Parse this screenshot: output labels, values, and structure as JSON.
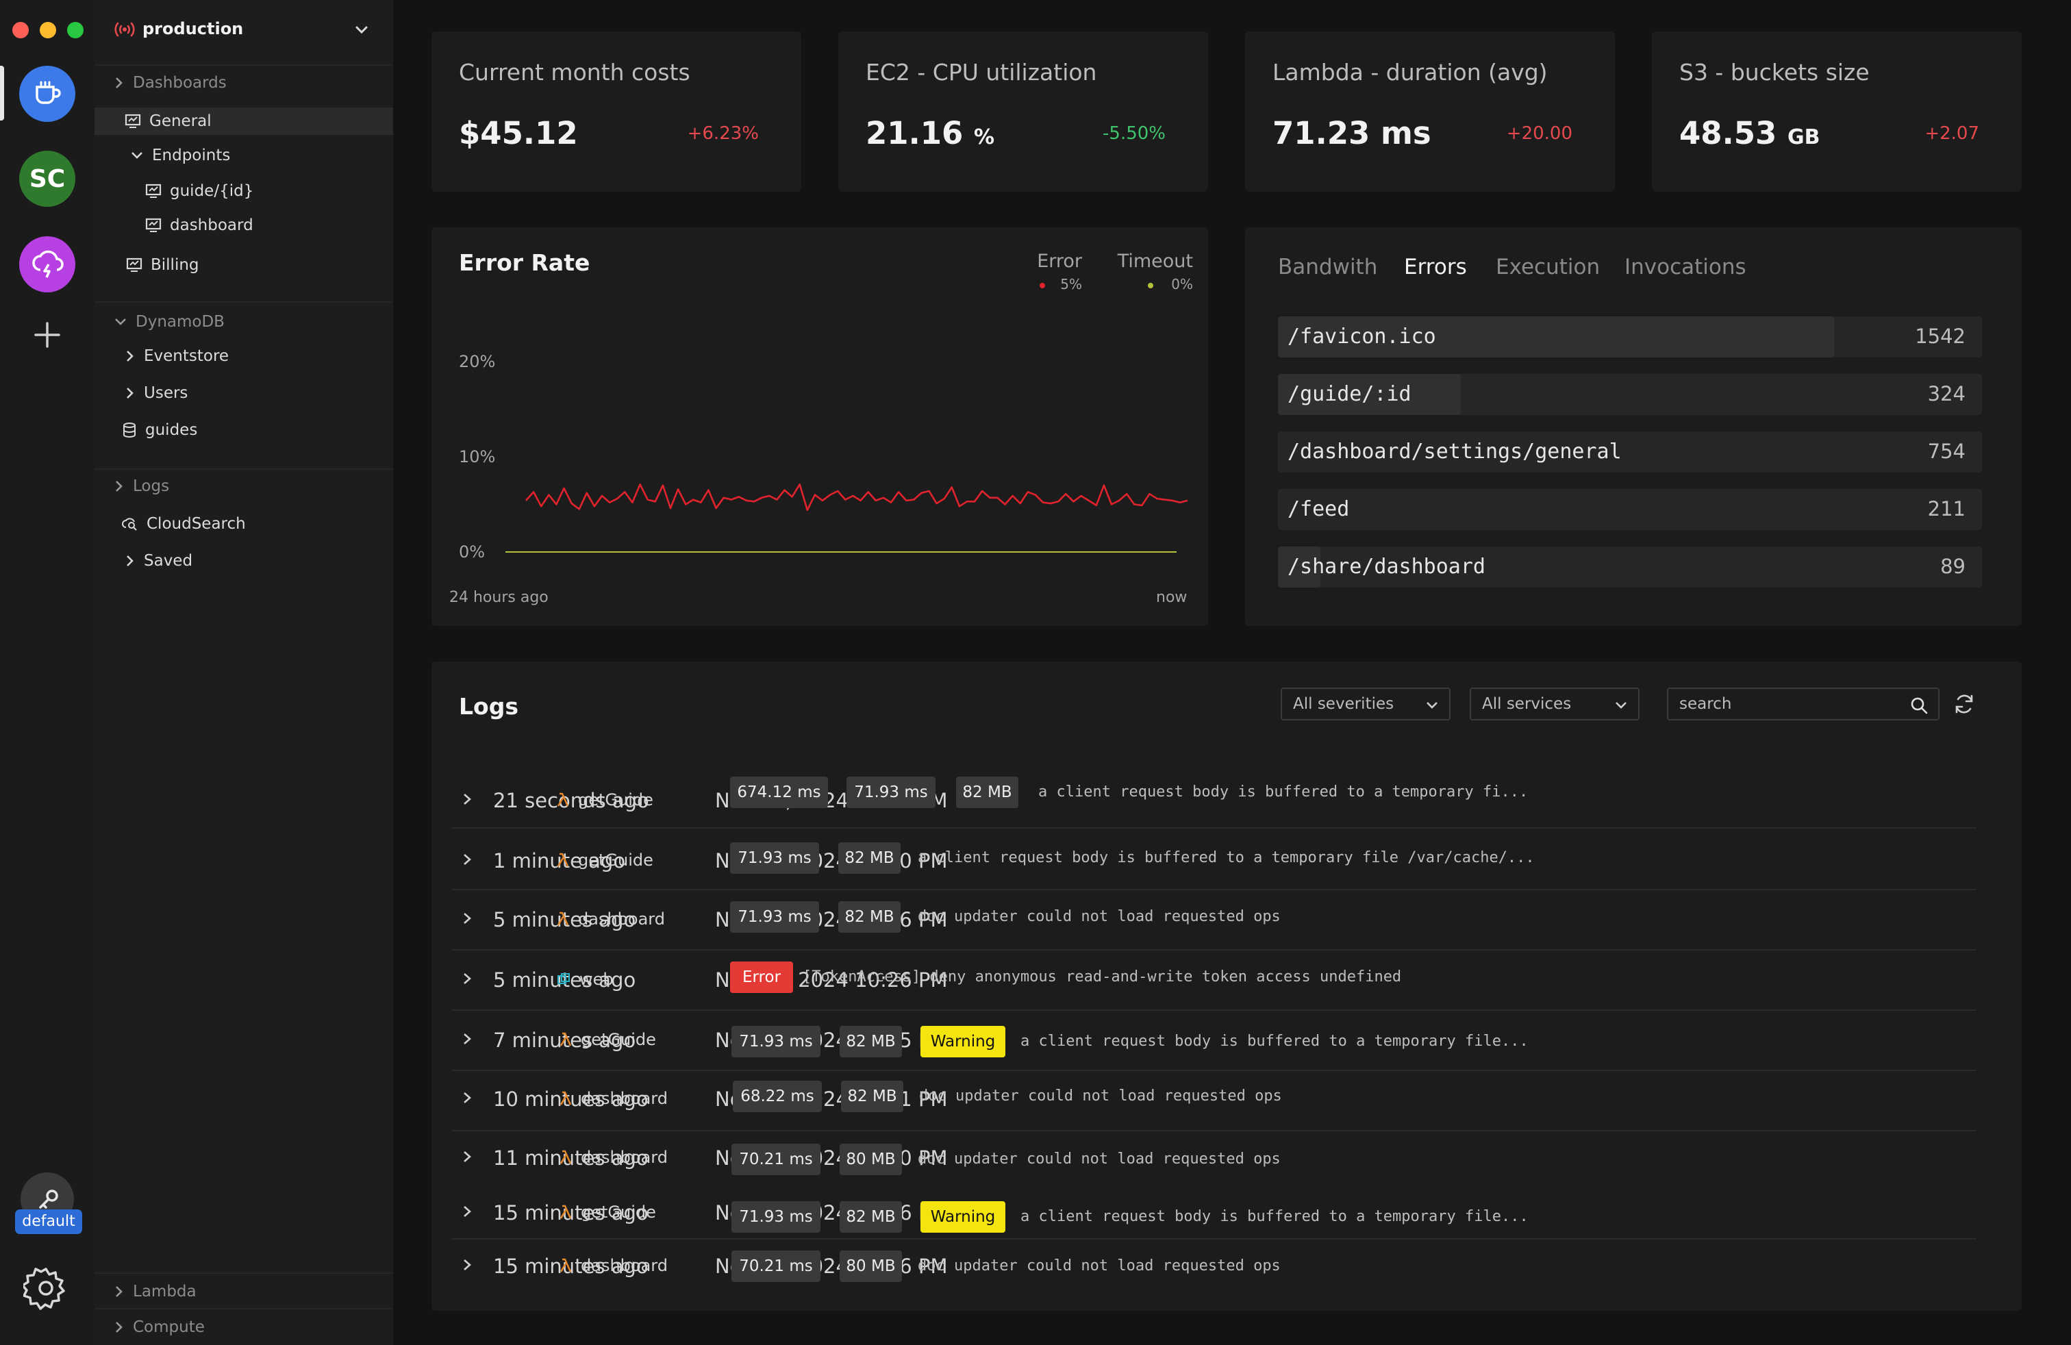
{
  "window": {
    "workspace": "production"
  },
  "rail": {
    "avatar_initials": "SC",
    "env_label": "default",
    "colors": {
      "coffee": "#3b7ae8",
      "avatar": "#2f7a2c",
      "cloud": "#b640e2"
    }
  },
  "sidebar": {
    "dashboards": "Dashboards",
    "general": "General",
    "endpoints": "Endpoints",
    "guide_id": "guide/{id}",
    "dashboard": "dashboard",
    "billing": "Billing",
    "dynamodb": "DynamoDB",
    "eventstore": "Eventstore",
    "users": "Users",
    "guides": "guides",
    "logs": "Logs",
    "cloudsearch": "CloudSearch",
    "saved": "Saved",
    "lambda": "Lambda",
    "compute": "Compute"
  },
  "stats": [
    {
      "title": "Current month costs",
      "value": "$45.12",
      "unit": "",
      "delta": "+6.23%",
      "trend": "up"
    },
    {
      "title": "EC2 - CPU utilization",
      "value": "21.16",
      "unit": "%",
      "delta": "-5.50%",
      "trend": "down"
    },
    {
      "title": "Lambda - duration (avg)",
      "value": "71.23 ms",
      "unit": "",
      "delta": "+20.00",
      "trend": "up"
    },
    {
      "title": "S3 - buckets size",
      "value": "48.53",
      "unit": "GB",
      "delta": "+2.07",
      "trend": "up"
    }
  ],
  "error_rate": {
    "title": "Error Rate",
    "legend": [
      {
        "name": "Error",
        "value": "5%",
        "color": "#e0232c"
      },
      {
        "name": "Timeout",
        "value": "0%",
        "color": "#b5c23a"
      }
    ],
    "start_label": "24 hours ago",
    "end_label": "now"
  },
  "chart_data": {
    "type": "line",
    "title": "Error Rate",
    "xlabel": "",
    "ylabel": "",
    "x_range": [
      "24 hours ago",
      "now"
    ],
    "ylim": [
      0,
      20
    ],
    "yticks": [
      "20%",
      "10%",
      "0%"
    ],
    "grid": false,
    "legend_position": "top-right",
    "series": [
      {
        "name": "Error",
        "color": "#e0232c",
        "values": [
          5.4,
          6.3,
          4.8,
          6.0,
          5.0,
          6.7,
          5.1,
          4.5,
          6.2,
          4.8,
          5.9,
          5.2,
          5.6,
          6.3,
          5.2,
          7.1,
          5.5,
          5.3,
          7.0,
          4.6,
          6.6,
          5.0,
          5.5,
          5.2,
          6.5,
          4.6,
          5.7,
          5.5,
          5.8,
          5.4,
          5.3,
          5.7,
          5.9,
          5.5,
          6.5,
          5.8,
          7.1,
          4.4,
          6.0,
          5.4,
          6.0,
          6.4,
          5.5,
          5.9,
          5.4,
          6.3,
          5.4,
          5.7,
          5.2,
          6.3,
          5.4,
          5.5,
          6.2,
          6.4,
          5.1,
          5.6,
          6.8,
          4.8,
          5.3,
          5.3,
          6.4,
          5.7,
          5.7,
          5.0,
          5.9,
          5.1,
          6.3,
          6.0,
          5.2,
          5.1,
          5.3,
          6.1,
          5.3,
          5.9,
          5.4,
          4.9,
          7.0,
          5.0,
          5.4,
          6.1,
          5.0,
          4.9,
          6.1,
          5.6,
          5.5,
          5.4,
          5.2,
          5.4
        ]
      },
      {
        "name": "Timeout",
        "color": "#b5c23a",
        "values": [
          0,
          0,
          0,
          0,
          0,
          0,
          0,
          0,
          0,
          0,
          0,
          0,
          0,
          0,
          0,
          0,
          0,
          0,
          0,
          0,
          0,
          0,
          0,
          0,
          0,
          0,
          0,
          0,
          0,
          0,
          0,
          0,
          0,
          0,
          0,
          0,
          0,
          0,
          0,
          0,
          0,
          0,
          0,
          0,
          0,
          0,
          0,
          0,
          0,
          0,
          0,
          0,
          0,
          0,
          0,
          0,
          0,
          0,
          0,
          0,
          0,
          0,
          0,
          0,
          0,
          0,
          0,
          0,
          0,
          0,
          0,
          0,
          0,
          0,
          0,
          0,
          0,
          0,
          0,
          0,
          0,
          0,
          0,
          0,
          0,
          0,
          0,
          0
        ]
      }
    ]
  },
  "endpoints": {
    "tabs": [
      "Bandwith",
      "Errors",
      "Execution",
      "Invocations"
    ],
    "active_tab": "Errors",
    "rows": [
      {
        "path": "/favicon.ico",
        "count": "1542",
        "share": 0.79
      },
      {
        "path": "/guide/:id",
        "count": "324",
        "share": 0.26
      },
      {
        "path": "/dashboard/settings/general",
        "count": "754",
        "share": 0.0
      },
      {
        "path": "/feed",
        "count": "211",
        "share": 0.0
      },
      {
        "path": "/share/dashboard",
        "count": "89",
        "share": 0.06
      }
    ]
  },
  "logs": {
    "title": "Logs",
    "severity_select": "All severities",
    "service_select": "All services",
    "search_placeholder": "search",
    "rows": [
      {
        "ago": "21 seconds ago",
        "date": "Nov 05, 2024 10:31 PM",
        "service": "getGuide",
        "kind": "lambda",
        "chips": [
          "674.12 ms",
          "71.93 ms",
          "82 MB"
        ],
        "badge": "",
        "message": "a client request body is buffered to a temporary fi..."
      },
      {
        "ago": "1 minute ago",
        "date": "Nov 05, 2024 10:30 PM",
        "service": "getGuide",
        "kind": "lambda",
        "chips": [
          "71.93 ms",
          "82 MB"
        ],
        "badge": "",
        "message": "a client request body is buffered to a temporary file /var/cache/..."
      },
      {
        "ago": "5 minutes ago",
        "date": "Nov 05, 2024 10:26 PM",
        "service": "dashboard",
        "kind": "lambda",
        "chips": [
          "71.93 ms",
          "82 MB"
        ],
        "badge": "",
        "message": "doc updater could not load requested ops"
      },
      {
        "ago": "5 minutes ago",
        "date": "Nov 05, 2024 10:26 PM",
        "service": "web",
        "kind": "web",
        "chips": [],
        "badge": "Error",
        "message": "[TokenAccess] deny anonymous read-and-write token access undefined"
      },
      {
        "ago": "7 minutes ago",
        "date": "Nov 05, 2024 10:25 PM",
        "service": "getGuide",
        "kind": "lambda",
        "chips": [
          "71.93 ms",
          "82 MB"
        ],
        "badge": "Warning",
        "message": "a client request body is buffered to a temporary file..."
      },
      {
        "ago": "10 mintues ago",
        "date": "Nov 05, 2024 10:21 PM",
        "service": "dashboard",
        "kind": "lambda",
        "chips": [
          "68.22 ms",
          "82 MB"
        ],
        "badge": "",
        "message": "doc updater could not load requested ops"
      },
      {
        "ago": "11 minutes ago",
        "date": "Nov 05, 2024 10:20 PM",
        "service": "dashboard",
        "kind": "lambda",
        "chips": [
          "70.21 ms",
          "80 MB"
        ],
        "badge": "",
        "message": "doc updater could not load requested ops"
      },
      {
        "ago": "15 minutes ago",
        "date": "Nov 05, 2024 10:16 PM",
        "service": "getGuide",
        "kind": "lambda",
        "chips": [
          "71.93 ms",
          "82 MB"
        ],
        "badge": "Warning",
        "message": "a client request body is buffered to a temporary file..."
      },
      {
        "ago": "15 minutes ago",
        "date": "Nov 05, 2024 10:16 PM",
        "service": "dashboard",
        "kind": "lambda",
        "chips": [
          "70.21 ms",
          "80 MB"
        ],
        "badge": "",
        "message": "doc updater could not load requested ops"
      }
    ]
  }
}
